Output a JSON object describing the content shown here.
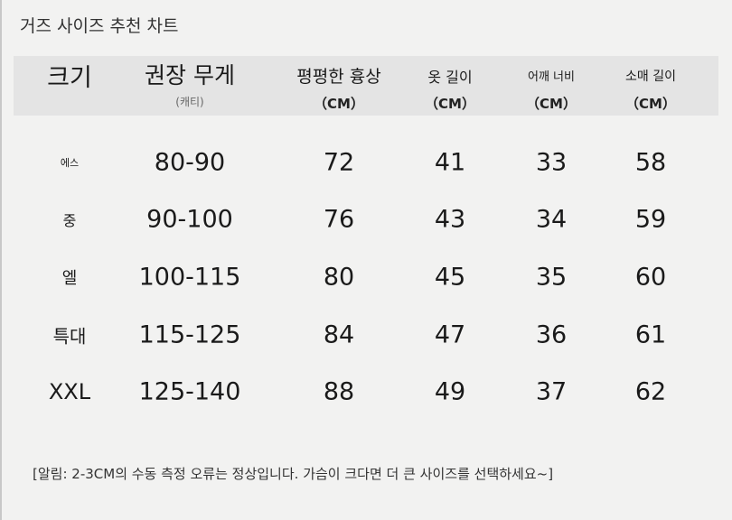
{
  "title": "거즈 사이즈 추천 차트",
  "headers": [
    {
      "label": "크기",
      "sub": ""
    },
    {
      "label": "권장 무게",
      "sub": "(캐티)"
    },
    {
      "label": "평평한 흉상",
      "sub": "（CM）"
    },
    {
      "label": "옷 길이",
      "sub": "（CM）"
    },
    {
      "label": "어깨 너비",
      "sub": "（CM）"
    },
    {
      "label": "소매 길이",
      "sub": "（CM）"
    }
  ],
  "rows": [
    [
      "에스",
      "80-90",
      "72",
      "41",
      "33",
      "58"
    ],
    [
      "중",
      "90-100",
      "76",
      "43",
      "34",
      "59"
    ],
    [
      "엘",
      "100-115",
      "80",
      "45",
      "35",
      "60"
    ],
    [
      "특대",
      "115-125",
      "84",
      "47",
      "36",
      "61"
    ],
    [
      "XXL",
      "125-140",
      "88",
      "49",
      "37",
      "62"
    ]
  ],
  "note": "[알림: 2-3CM의 수동 측정 오류는 정상입니다. 가슴이 크다면 더 큰 사이즈를 선택하세요~]"
}
